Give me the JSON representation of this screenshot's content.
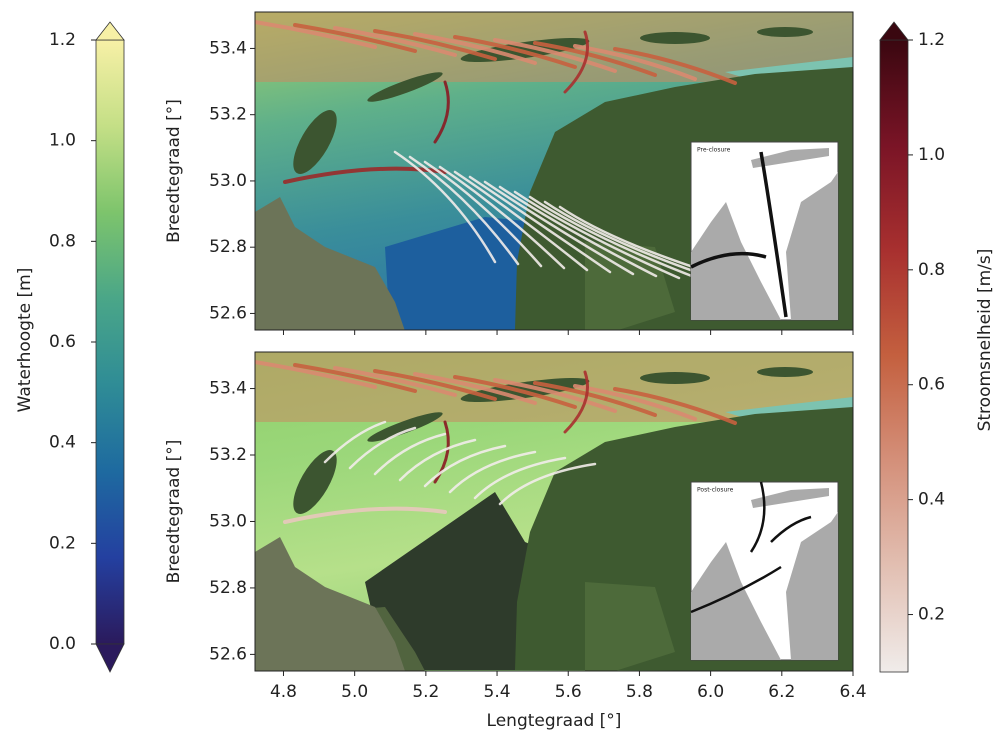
{
  "colorbars": [
    {
      "label": "Waterhoogte [m]",
      "lim": [
        0,
        1.2
      ],
      "extend": "both",
      "ticks": [
        {
          "value": 0,
          "label": "0.0"
        },
        0.2,
        0.4,
        0.6,
        0.8,
        {
          "value": 1,
          "label": "1.0"
        },
        1.2
      ],
      "colors": [
        "#2b1a5c",
        "#2440a0",
        "#1e6aa0",
        "#2f8c96",
        "#4aa688",
        "#7dc46c",
        "#c4df86",
        "#f7f0a6"
      ]
    },
    {
      "label": "Stroomsnelheid [m/s]",
      "lim": [
        0.1,
        1.2
      ],
      "extend": "max",
      "ticks": [
        0.2,
        0.4,
        0.6,
        0.8,
        {
          "value": 1,
          "label": "1.0"
        },
        1.2
      ],
      "colors": [
        "#f0ecea",
        "#e2bfb2",
        "#d4907a",
        "#c4603f",
        "#a8302f",
        "#7a1426",
        "#3a0710"
      ]
    }
  ],
  "chart_data": [
    {
      "type": "map",
      "ylabel": "Breedtegraad [°]",
      "inset_label": "Pre-closure",
      "closed": false,
      "xlim": [
        4.72,
        6.4
      ],
      "ylim": [
        52.55,
        53.51
      ],
      "yticks": [
        52.6,
        52.8,
        {
          "value": 53,
          "label": "53.0"
        },
        53.2,
        53.4
      ]
    },
    {
      "type": "map",
      "ylabel": "Breedtegraad [°]",
      "xlabel": "Lengtegraad [°]",
      "inset_label": "Post-closure",
      "closed": true,
      "xlim": [
        4.72,
        6.4
      ],
      "ylim": [
        52.55,
        53.51
      ],
      "xticks": [
        4.8,
        {
          "value": 5,
          "label": "5.0"
        },
        5.2,
        5.4,
        5.6,
        5.8,
        {
          "value": 6,
          "label": "6.0"
        },
        6.2,
        6.4
      ],
      "yticks": [
        52.6,
        52.8,
        {
          "value": 53,
          "label": "53.0"
        },
        53.2,
        53.4
      ]
    }
  ]
}
